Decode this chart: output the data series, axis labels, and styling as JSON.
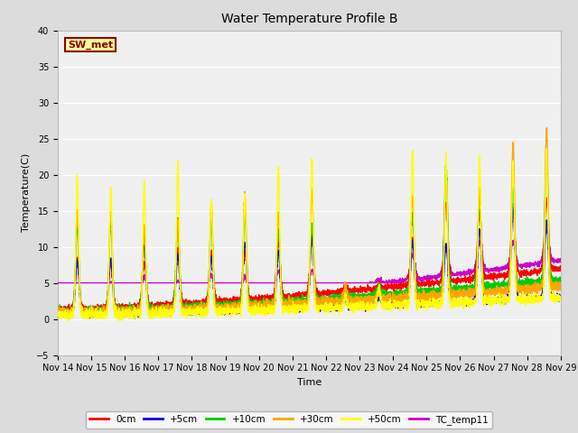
{
  "title": "Water Temperature Profile B",
  "xlabel": "Time",
  "ylabel": "Temperature(C)",
  "ylim": [
    -5,
    40
  ],
  "annotation": "SW_met",
  "annotation_color": "#8B0000",
  "annotation_bg": "#FFFF99",
  "series_colors": {
    "0cm": "#FF0000",
    "+5cm": "#0000FF",
    "+10cm": "#00CC00",
    "+30cm": "#FFA500",
    "+50cm": "#FFFF00",
    "TC_temp11": "#CC00CC"
  },
  "series_lw": 1.0,
  "bg_color": "#DCDCDC",
  "plot_bg": "#F0F0F0",
  "grid_color": "#FFFFFF",
  "tick_label_size": 7,
  "title_fontsize": 10,
  "axis_label_fontsize": 8,
  "legend_fontsize": 7.5
}
